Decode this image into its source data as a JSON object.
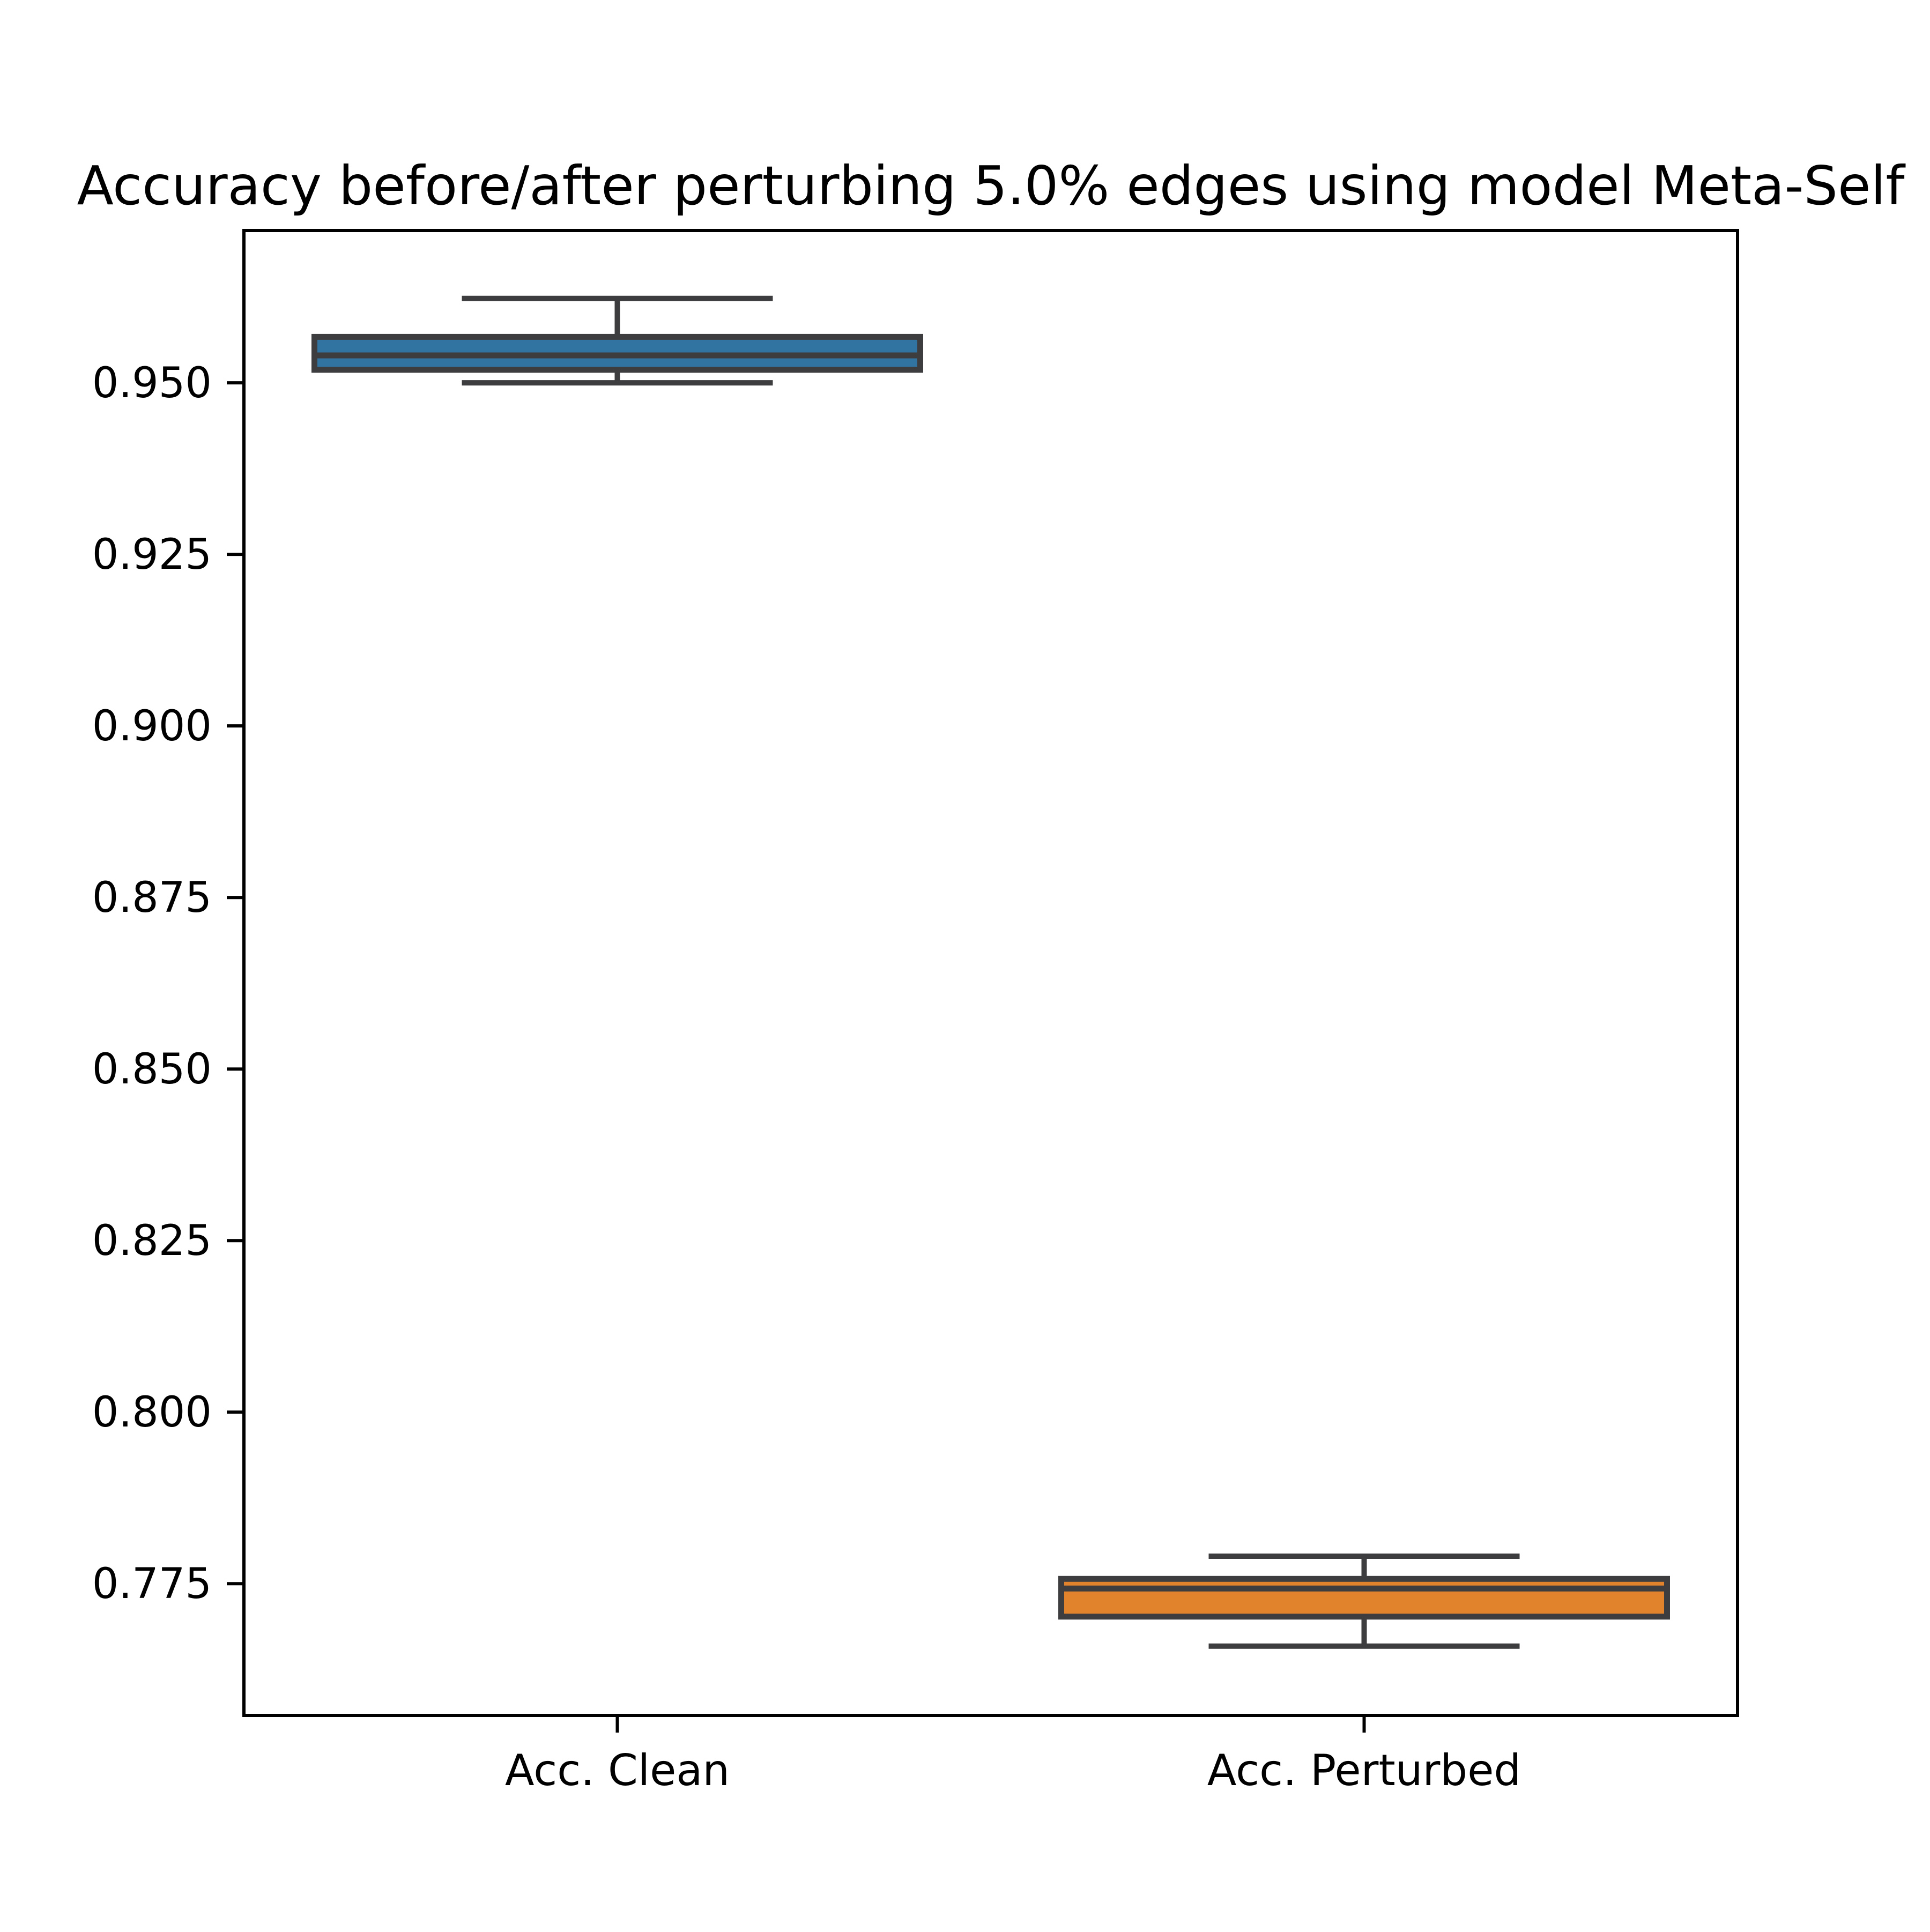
{
  "figure": {
    "title": "Accuracy before/after perturbing 5.0% edges using model Meta-Self"
  },
  "colors": {
    "background": "#ffffff",
    "axis_line": "#000000",
    "text": "#000000",
    "box_edge": "#3d3d3f",
    "clean_fill": "#3274a1",
    "perturbed_fill": "#e1832c"
  },
  "chart_data": {
    "type": "boxplot",
    "title": "Accuracy before/after perturbing 5.0% edges using model Meta-Self",
    "xlabel": "",
    "ylabel": "",
    "grid": false,
    "legend_position": "none",
    "categories": [
      "Acc. Clean",
      "Acc. Perturbed"
    ],
    "series": [
      {
        "name": "Acc. Clean",
        "whisker_low": 0.95,
        "q1": 0.9519,
        "median": 0.954,
        "q3": 0.9567,
        "whisker_high": 0.9623,
        "fill": "#3274a1"
      },
      {
        "name": "Acc. Perturbed",
        "whisker_low": 0.7659,
        "q1": 0.7702,
        "median": 0.7743,
        "q3": 0.7757,
        "whisker_high": 0.779,
        "fill": "#e1832c"
      }
    ],
    "ylim": [
      0.7558,
      0.9722
    ],
    "yticks": [
      "0.950",
      "0.925",
      "0.900",
      "0.875",
      "0.850",
      "0.825",
      "0.800",
      "0.775"
    ]
  }
}
